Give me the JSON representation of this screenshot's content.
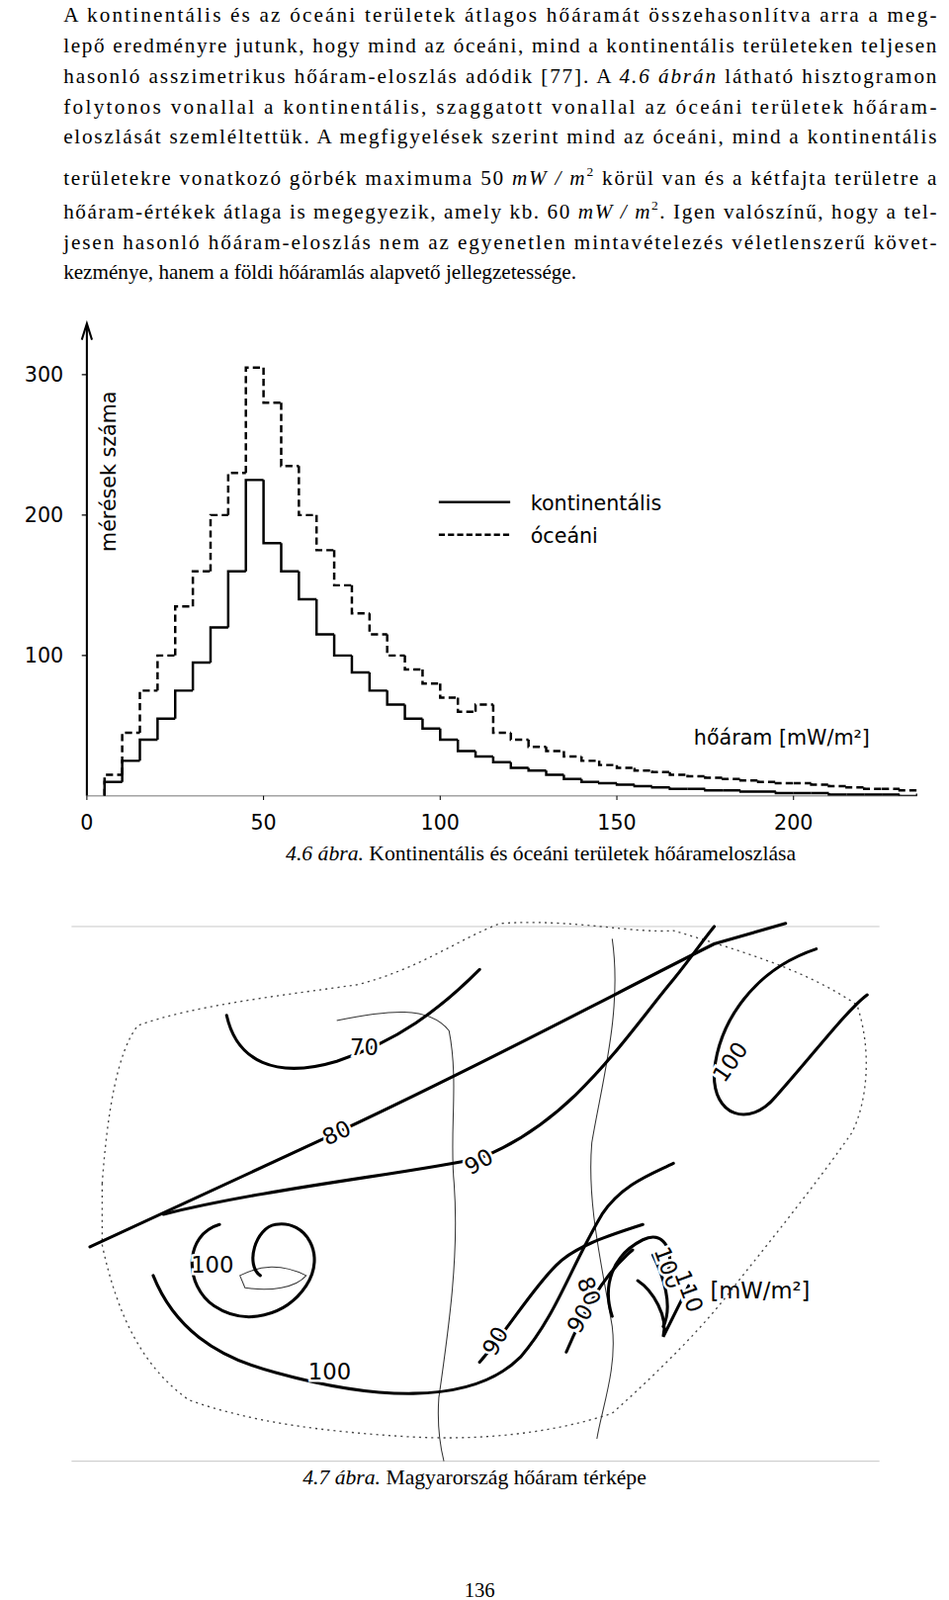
{
  "text": {
    "lines": [
      [
        {
          "text": "A kontinentális és az óceáni területek átlagos hőáramát összehasonlítva arra a meg-"
        }
      ],
      [
        {
          "text": "lepő eredményre jutunk, hogy mind az óceáni, mind a kontinentális területeken teljesen"
        }
      ],
      [
        {
          "text": "hasonló asszimetrikus hőáram-eloszlás adódik [77]. A "
        },
        {
          "text": "4.6 ábrán",
          "style": "italic"
        },
        {
          "text": " látható hisztogramon"
        }
      ],
      [
        {
          "text": "folytonos vonallal a kontinentális, szaggatott vonallal az óceáni területek hőáram-"
        }
      ],
      [
        {
          "text": "eloszlását szemléltettük. A megfigyelések szerint mind az óceáni, mind a kontinentális"
        }
      ],
      [
        {
          "text": "területekre vonatkozó görbék maximuma 50 "
        },
        {
          "text": "mW / m",
          "style": "italic"
        },
        {
          "text": "2",
          "style": "sup"
        },
        {
          "text": " körül van és a kétfajta területre a"
        }
      ],
      [
        {
          "text": "hőáram-értékek átlaga is megegyezik, amely kb. 60 "
        },
        {
          "text": "mW / m",
          "style": "italic"
        },
        {
          "text": "2",
          "style": "sup"
        },
        {
          "text": ". Igen valószínű, hogy a tel-"
        }
      ],
      [
        {
          "text": "jesen hasonló hőáram-eloszlás nem az egyenetlen mintavételezés véletlenszerű követ-"
        }
      ],
      [
        {
          "text": "kezménye, hanem a földi hőáramlás alapvető jellegzetessége."
        }
      ]
    ]
  },
  "chart_data": {
    "type": "histogram",
    "xlabel": "hőáram [mW/m²]",
    "ylabel": "mérések száma",
    "bins": [
      5,
      10,
      15,
      20,
      25,
      30,
      35,
      40,
      45,
      50,
      55,
      60,
      65,
      70,
      75,
      80,
      85,
      90,
      95,
      100,
      105,
      110,
      115,
      120,
      125,
      130,
      135,
      140,
      145,
      150,
      155,
      160,
      165,
      170,
      175,
      180,
      185,
      190,
      195,
      200,
      205,
      210,
      215,
      220,
      225,
      230,
      235
    ],
    "series": [
      {
        "name": "kontinentális",
        "color": "#000000",
        "line_style": "solid",
        "values": [
          10,
          25,
          40,
          55,
          75,
          95,
          120,
          160,
          225,
          180,
          160,
          140,
          115,
          100,
          88,
          75,
          65,
          55,
          48,
          40,
          32,
          28,
          24,
          20,
          18,
          15,
          12,
          10,
          9,
          8,
          7,
          6,
          5,
          5,
          4,
          4,
          3,
          3,
          2,
          2,
          2,
          1,
          1,
          1,
          1,
          0
        ]
      },
      {
        "name": "óceáni",
        "color": "#000000",
        "line_style": "dashed",
        "values": [
          15,
          45,
          75,
          100,
          135,
          160,
          200,
          230,
          305,
          280,
          235,
          200,
          175,
          150,
          130,
          115,
          100,
          90,
          80,
          70,
          60,
          65,
          45,
          40,
          35,
          32,
          28,
          25,
          22,
          20,
          18,
          17,
          15,
          14,
          13,
          12,
          11,
          10,
          9,
          9,
          8,
          7,
          6,
          5,
          5,
          4
        ]
      }
    ],
    "xlim": [
      0,
      235
    ],
    "ylim": [
      0,
      335
    ],
    "xticks": [
      0,
      50,
      100,
      150,
      200
    ],
    "yticks": [
      100,
      200,
      300
    ],
    "legend": "right"
  },
  "figure_4_6_caption": [
    {
      "text": "4.6 ábra.",
      "style": "italic"
    },
    {
      "text": " Kontinentális és óceáni területek hőárameloszlása"
    }
  ],
  "map": {
    "contour_levels": [
      70,
      80,
      90,
      100,
      100,
      100,
      90,
      90,
      80,
      100,
      110
    ],
    "unit": "[mW/m²]",
    "caption": [
      {
        "text": "4.7 ábra.",
        "style": "italic"
      },
      {
        "text": " Magyarország hőáram térképe"
      }
    ]
  },
  "page_number": 136
}
